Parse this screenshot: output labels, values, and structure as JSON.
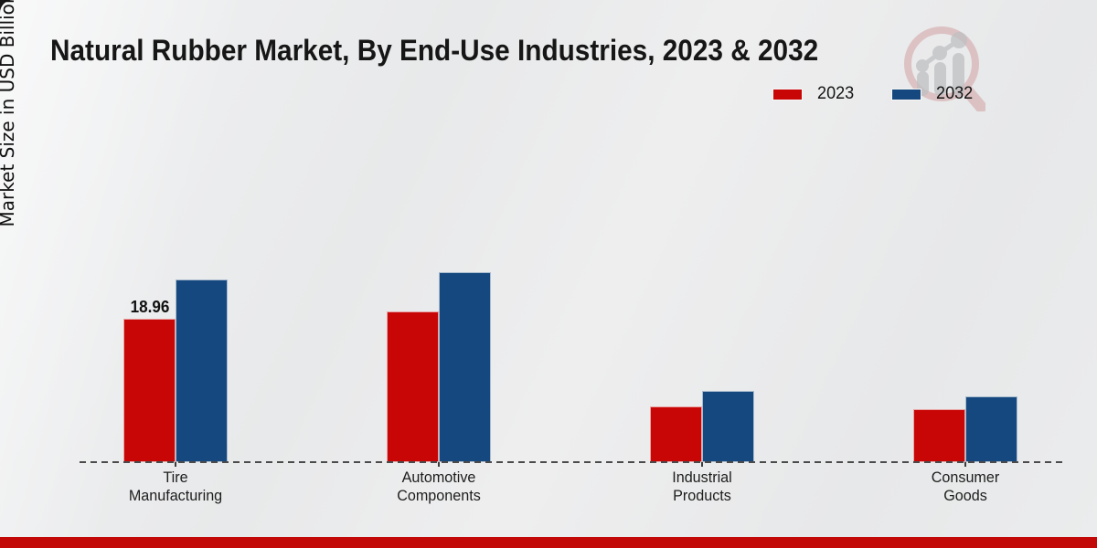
{
  "title": "Natural Rubber Market, By End-Use Industries, 2023 & 2032",
  "y_axis_label": "Market Size in USD Billion",
  "legend": {
    "position": "top-right",
    "items": [
      {
        "label": "2023"
      },
      {
        "label": "2032"
      }
    ]
  },
  "watermark_icon": "magnifier-bar-chart-logo",
  "colors": {
    "bar_2023": "#c80606",
    "bar_2032": "#15487e",
    "footer_bar": "#c30808",
    "baseline": "#4b4b4b",
    "background": "#eaebec"
  },
  "chart_data": {
    "type": "bar",
    "title": "Natural Rubber Market, By End-Use Industries, 2023 & 2032",
    "ylabel": "Market Size in USD Billion",
    "xlabel": "",
    "categories": [
      "Tire Manufacturing",
      "Automotive Components",
      "Industrial Products",
      "Consumer Goods"
    ],
    "category_label_lines": [
      [
        "Tire",
        "Manufacturing"
      ],
      [
        "Automotive",
        "Components"
      ],
      [
        "Industrial",
        "Products"
      ],
      [
        "Consumer",
        "Goods"
      ]
    ],
    "series": [
      {
        "name": "2023",
        "color": "#c80606",
        "values": [
          18.96,
          19.9,
          7.4,
          7.0
        ]
      },
      {
        "name": "2032",
        "color": "#15487e",
        "values": [
          24.2,
          25.1,
          9.4,
          8.7
        ]
      }
    ],
    "data_labels": [
      {
        "series": "2023",
        "category": "Tire Manufacturing",
        "category_index": 0,
        "text": "18.96"
      }
    ],
    "units": "USD Billion",
    "grid": false,
    "y_axis_ticks_visible": false,
    "x_axis_style": "dashed-baseline",
    "legend_position": "top-right"
  }
}
